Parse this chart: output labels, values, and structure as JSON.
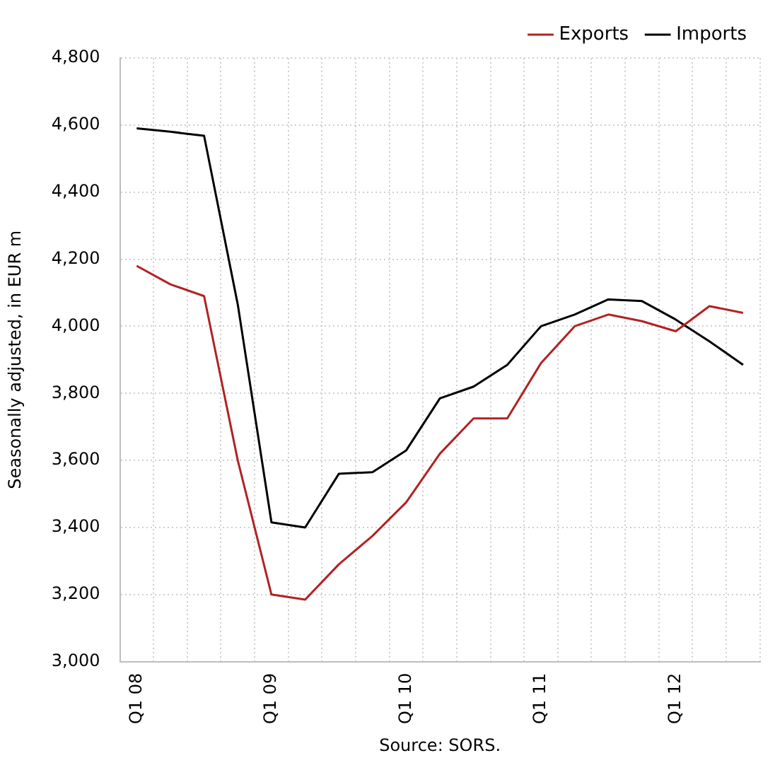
{
  "chart_data": {
    "type": "line",
    "ylabel": "Seasonally adjusted, in EUR m",
    "annotations": [
      "Source: SORS."
    ],
    "categories": [
      "Q1 08",
      null,
      null,
      null,
      "Q1 09",
      null,
      null,
      null,
      "Q1 10",
      null,
      null,
      null,
      "Q1 11",
      null,
      null,
      null,
      "Q1 12",
      null,
      null
    ],
    "series": [
      {
        "name": "Exports",
        "color": "#b22222",
        "values": [
          4180,
          4125,
          4090,
          3600,
          3200,
          3185,
          3290,
          3375,
          3475,
          3620,
          3725,
          3725,
          3890,
          4000,
          4035,
          4015,
          3985,
          4060,
          4040
        ]
      },
      {
        "name": "Imports",
        "color": "#000000",
        "values": [
          4590,
          4580,
          4568,
          4065,
          3415,
          3400,
          3560,
          3565,
          3630,
          3785,
          3820,
          3885,
          4000,
          4035,
          4080,
          4075,
          4020,
          3955,
          3885
        ]
      }
    ],
    "ylim": [
      3000,
      4800
    ],
    "yticks": [
      {
        "value": 3000,
        "label": "3,000"
      },
      {
        "value": 3200,
        "label": "3,200"
      },
      {
        "value": 3400,
        "label": "3,400"
      },
      {
        "value": 3600,
        "label": "3,600"
      },
      {
        "value": 3800,
        "label": "3,800"
      },
      {
        "value": 4000,
        "label": "4,000"
      },
      {
        "value": 4200,
        "label": "4,200"
      },
      {
        "value": 4400,
        "label": "4,400"
      },
      {
        "value": 4600,
        "label": "4,600"
      },
      {
        "value": 4800,
        "label": "4,800"
      }
    ],
    "grid": true,
    "legend": "top right",
    "marker": "none",
    "line_style": "solid"
  }
}
